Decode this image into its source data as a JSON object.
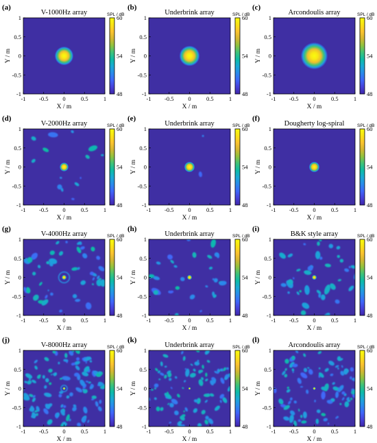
{
  "chart_data": [
    {
      "panel_label": "(a)",
      "title": "V-1000Hz array",
      "type": "heatmap",
      "xlabel": "X / m",
      "ylabel": "Y / m",
      "xlim": [
        -1,
        1
      ],
      "ylim": [
        -1,
        1
      ],
      "xticks": [
        "-1",
        "-0.5",
        "0",
        "0.5",
        "1"
      ],
      "yticks": [
        "-1",
        "-0.5",
        "0",
        "0.5",
        "1"
      ],
      "colorbar": {
        "title": "SPL / dB",
        "ticks": [
          "60",
          "54",
          "48"
        ],
        "range": [
          48,
          60
        ]
      },
      "peak": {
        "x": 0,
        "y": 0,
        "value": 60
      },
      "spot_radius": 0.23,
      "sidelobes": 0,
      "seed": 11
    },
    {
      "panel_label": "(b)",
      "title": "Underbrink array",
      "type": "heatmap",
      "xlabel": "X / m",
      "ylabel": "Y / m",
      "xlim": [
        -1,
        1
      ],
      "ylim": [
        -1,
        1
      ],
      "xticks": [
        "-1",
        "-0.5",
        "0",
        "0.5",
        "1"
      ],
      "yticks": [
        "-1",
        "-0.5",
        "0",
        "0.5",
        "1"
      ],
      "colorbar": {
        "title": "SPL / dB",
        "ticks": [
          "60",
          "54",
          "48"
        ],
        "range": [
          48,
          60
        ]
      },
      "peak": {
        "x": 0,
        "y": 0,
        "value": 60
      },
      "spot_radius": 0.25,
      "sidelobes": 0,
      "seed": 12
    },
    {
      "panel_label": "(c)",
      "title": "Arcondoulis array",
      "type": "heatmap",
      "xlabel": "X / m",
      "ylabel": "Y / m",
      "xlim": [
        -1,
        1
      ],
      "ylim": [
        -1,
        1
      ],
      "xticks": [
        "-1",
        "-0.5",
        "0",
        "0.5",
        "1"
      ],
      "yticks": [
        "-1",
        "-0.5",
        "0",
        "0.5",
        "1"
      ],
      "colorbar": {
        "title": "SPL / dB",
        "ticks": [
          "60",
          "54",
          "48"
        ],
        "range": [
          48,
          60
        ]
      },
      "peak": {
        "x": 0,
        "y": 0,
        "value": 60
      },
      "spot_radius": 0.33,
      "sidelobes": 0,
      "seed": 13
    },
    {
      "panel_label": "(d)",
      "title": "V-2000Hz array",
      "type": "heatmap",
      "xlabel": "X / m",
      "ylabel": "Y / m",
      "xlim": [
        -1,
        1
      ],
      "ylim": [
        -1,
        1
      ],
      "xticks": [
        "-1",
        "-0.5",
        "0",
        "0.5",
        "1"
      ],
      "yticks": [
        "-1",
        "-0.5",
        "0",
        "0.5",
        "1"
      ],
      "colorbar": {
        "title": "SPL / dB",
        "ticks": [
          "60",
          "54",
          "48"
        ],
        "range": [
          48,
          60
        ]
      },
      "peak": {
        "x": 0,
        "y": 0,
        "value": 60
      },
      "spot_radius": 0.11,
      "sidelobes": 14,
      "seed": 21
    },
    {
      "panel_label": "(e)",
      "title": "Underbrink array",
      "type": "heatmap",
      "xlabel": "X / m",
      "ylabel": "Y / m",
      "xlim": [
        -1,
        1
      ],
      "ylim": [
        -1,
        1
      ],
      "xticks": [
        "-1",
        "-0.5",
        "0",
        "0.5",
        "1"
      ],
      "yticks": [
        "-1",
        "-0.5",
        "0",
        "0.5",
        "1"
      ],
      "colorbar": {
        "title": "SPL / dB",
        "ticks": [
          "60",
          "54",
          "48"
        ],
        "range": [
          48,
          60
        ]
      },
      "peak": {
        "x": 0,
        "y": 0,
        "value": 60
      },
      "spot_radius": 0.13,
      "sidelobes": 2,
      "seed": 22
    },
    {
      "panel_label": "(f)",
      "title": "Dougherty log-spiral",
      "type": "heatmap",
      "xlabel": "X / m",
      "ylabel": "Y / m",
      "xlim": [
        -1,
        1
      ],
      "ylim": [
        -1,
        1
      ],
      "xticks": [
        "-1",
        "-0.5",
        "0",
        "0.5",
        "1"
      ],
      "yticks": [
        "-1",
        "-0.5",
        "0",
        "0.5",
        "1"
      ],
      "colorbar": {
        "title": "SPL / dB",
        "ticks": [
          "60",
          "54",
          "48"
        ],
        "range": [
          48,
          60
        ]
      },
      "peak": {
        "x": 0,
        "y": 0,
        "value": 60
      },
      "spot_radius": 0.13,
      "sidelobes": 0,
      "seed": 23
    },
    {
      "panel_label": "(g)",
      "title": "V-4000Hz array",
      "type": "heatmap",
      "xlabel": "X / m",
      "ylabel": "Y / m",
      "xlim": [
        -1,
        1
      ],
      "ylim": [
        -1,
        1
      ],
      "xticks": [
        "-1",
        "-0.5",
        "0",
        "0.5",
        "1"
      ],
      "yticks": [
        "-1",
        "-0.5",
        "0",
        "0.5",
        "1"
      ],
      "colorbar": {
        "title": "SPL / dB",
        "ticks": [
          "60",
          "54",
          "48"
        ],
        "range": [
          48,
          60
        ]
      },
      "peak": {
        "x": 0,
        "y": 0,
        "value": 60
      },
      "spot_radius": 0.06,
      "sidelobes": 45,
      "seed": 31
    },
    {
      "panel_label": "(h)",
      "title": "Underbrink array",
      "type": "heatmap",
      "xlabel": "X / m",
      "ylabel": "Y / m",
      "xlim": [
        -1,
        1
      ],
      "ylim": [
        -1,
        1
      ],
      "xticks": [
        "-1",
        "-0.5",
        "0",
        "0.5",
        "1"
      ],
      "yticks": [
        "-1",
        "-0.5",
        "0",
        "0.5",
        "1"
      ],
      "colorbar": {
        "title": "SPL / dB",
        "ticks": [
          "60",
          "54",
          "48"
        ],
        "range": [
          48,
          60
        ]
      },
      "peak": {
        "x": 0,
        "y": 0,
        "value": 60
      },
      "spot_radius": 0.06,
      "sidelobes": 30,
      "seed": 32
    },
    {
      "panel_label": "(i)",
      "title": "B&K style array",
      "type": "heatmap",
      "xlabel": "X / m",
      "ylabel": "Y / m",
      "xlim": [
        -1,
        1
      ],
      "ylim": [
        -1,
        1
      ],
      "xticks": [
        "-1",
        "-0.5",
        "0",
        "0.5",
        "1"
      ],
      "yticks": [
        "-1",
        "-0.5",
        "0",
        "0.5",
        "1"
      ],
      "colorbar": {
        "title": "SPL / dB",
        "ticks": [
          "60",
          "54",
          "48"
        ],
        "range": [
          48,
          60
        ]
      },
      "peak": {
        "x": 0,
        "y": 0,
        "value": 60
      },
      "spot_radius": 0.06,
      "sidelobes": 40,
      "seed": 33
    },
    {
      "panel_label": "(j)",
      "title": "V-8000Hz array",
      "type": "heatmap",
      "xlabel": "X / m",
      "ylabel": "Y / m",
      "xlim": [
        -1,
        1
      ],
      "ylim": [
        -1,
        1
      ],
      "xticks": [
        "-1",
        "-0.5",
        "0",
        "0.5",
        "1"
      ],
      "yticks": [
        "-1",
        "-0.5",
        "0",
        "0.5",
        "1"
      ],
      "colorbar": {
        "title": "SPL / dB",
        "ticks": [
          "60",
          "54",
          "48"
        ],
        "range": [
          48,
          60
        ]
      },
      "peak": {
        "x": 0,
        "y": 0,
        "value": 60
      },
      "spot_radius": 0.035,
      "sidelobes": 110,
      "seed": 41
    },
    {
      "panel_label": "(k)",
      "title": "Underbrink array",
      "type": "heatmap",
      "xlabel": "X / m",
      "ylabel": "Y / m",
      "xlim": [
        -1,
        1
      ],
      "ylim": [
        -1,
        1
      ],
      "xticks": [
        "-1",
        "-0.5",
        "0",
        "0.5",
        "1"
      ],
      "yticks": [
        "-1",
        "-0.5",
        "0",
        "0.5",
        "1"
      ],
      "colorbar": {
        "title": "SPL / dB",
        "ticks": [
          "60",
          "54",
          "48"
        ],
        "range": [
          48,
          60
        ]
      },
      "peak": {
        "x": 0,
        "y": 0,
        "value": 60
      },
      "spot_radius": 0.03,
      "sidelobes": 95,
      "seed": 42
    },
    {
      "panel_label": "(l)",
      "title": "Arcondoulis array",
      "type": "heatmap",
      "xlabel": "X / m",
      "ylabel": "Y / m",
      "xlim": [
        -1,
        1
      ],
      "ylim": [
        -1,
        1
      ],
      "xticks": [
        "-1",
        "-0.5",
        "0",
        "0.5",
        "1"
      ],
      "yticks": [
        "-1",
        "-0.5",
        "0",
        "0.5",
        "1"
      ],
      "colorbar": {
        "title": "SPL / dB",
        "ticks": [
          "60",
          "54",
          "48"
        ],
        "range": [
          48,
          60
        ]
      },
      "peak": {
        "x": 0,
        "y": 0,
        "value": 60
      },
      "spot_radius": 0.035,
      "sidelobes": 90,
      "seed": 43
    }
  ],
  "colors": {
    "background": "#3f2fa3",
    "colormap": [
      "#3e26a8",
      "#4741d9",
      "#3f66f8",
      "#2a8aeb",
      "#1aa9d5",
      "#0dbba6",
      "#3ec27a",
      "#8fc23f",
      "#d3b731",
      "#fbc330",
      "#f9e215",
      "#f9fb0e"
    ]
  }
}
